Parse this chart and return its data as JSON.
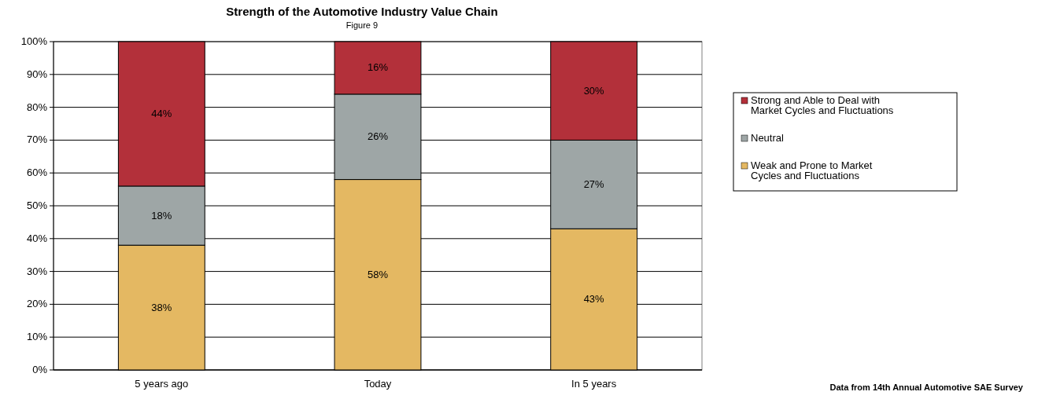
{
  "chart_data": {
    "type": "bar",
    "title": "Strength of the Automotive Industry Value Chain",
    "subtitle": "Figure 9",
    "categories": [
      "5 years ago",
      "Today",
      "In 5 years"
    ],
    "stacked": true,
    "grid": "y",
    "legend": "right",
    "series": [
      {
        "name": "Weak and Prone to Market Cycles and Fluctuations",
        "color": "#e4b862",
        "values": [
          38,
          58,
          43
        ],
        "value_labels": [
          "38%",
          "58%",
          "43%"
        ]
      },
      {
        "name": "Neutral",
        "color": "#9ea6a6",
        "values": [
          18,
          26,
          27
        ],
        "value_labels": [
          "18%",
          "26%",
          "27%"
        ]
      },
      {
        "name": "Strong and Able to Deal with Market Cycles and Fluctuations",
        "color": "#b3303a",
        "values": [
          44,
          16,
          30
        ],
        "value_labels": [
          "44%",
          "16%",
          "30%"
        ]
      }
    ],
    "ylim": [
      0,
      100
    ],
    "yticks": [
      {
        "value": 0,
        "label": "0%"
      },
      {
        "value": 10,
        "label": "10%"
      },
      {
        "value": 20,
        "label": "20%"
      },
      {
        "value": 30,
        "label": "30%"
      },
      {
        "value": 40,
        "label": "40%"
      },
      {
        "value": 50,
        "label": "50%"
      },
      {
        "value": 60,
        "label": "60%"
      },
      {
        "value": 70,
        "label": "70%"
      },
      {
        "value": 80,
        "label": "80%"
      },
      {
        "value": 90,
        "label": "90%"
      },
      {
        "value": 100,
        "label": "100%"
      }
    ],
    "annotations": [
      "Data from 14th Annual Automotive SAE Survey"
    ]
  }
}
